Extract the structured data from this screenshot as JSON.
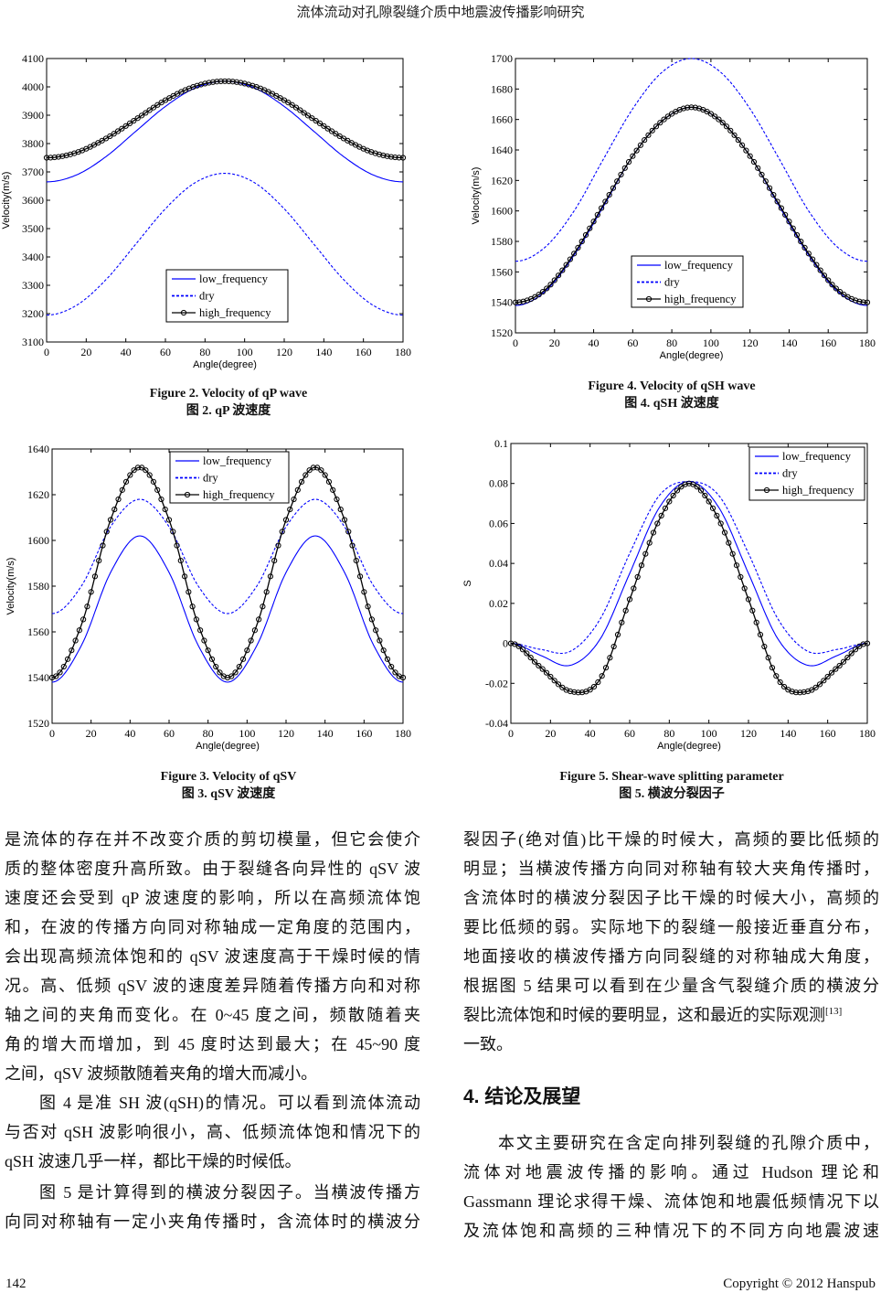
{
  "header": {
    "title": "流体流动对孔隙裂缝介质中地震波传播影响研究"
  },
  "chart_data": [
    {
      "id": "fig2",
      "type": "line",
      "caption_en": "Figure 2. Velocity of qP wave",
      "caption_zh": "图 2. qP 波速度",
      "xlabel": "Angle(degree)",
      "ylabel": "Velocity(m/s)",
      "xlim": [
        0,
        180
      ],
      "ylim": [
        3100,
        4100
      ],
      "xticks": [
        0,
        20,
        40,
        60,
        80,
        100,
        120,
        140,
        160,
        180
      ],
      "yticks": [
        3100,
        3200,
        3300,
        3400,
        3500,
        3600,
        3700,
        3800,
        3900,
        4000,
        4100
      ],
      "legend_position": "lower-center",
      "x": [
        0,
        15,
        30,
        45,
        60,
        75,
        90,
        105,
        120,
        135,
        150,
        165,
        180
      ],
      "series": [
        {
          "name": "low_frequency",
          "style": "solid",
          "color": "#0000ff",
          "values": [
            3665,
            3689,
            3754,
            3843,
            3931,
            3996,
            4020,
            3996,
            3931,
            3843,
            3754,
            3689,
            3665
          ]
        },
        {
          "name": "dry",
          "style": "dashed",
          "color": "#0000ff",
          "values": [
            3195,
            3229,
            3320,
            3445,
            3570,
            3662,
            3695,
            3662,
            3570,
            3445,
            3320,
            3229,
            3195
          ]
        },
        {
          "name": "high_frequency",
          "style": "circle-marker",
          "color": "#000000",
          "values": [
            3750,
            3768,
            3818,
            3885,
            3953,
            4002,
            4020,
            4002,
            3953,
            3885,
            3818,
            3768,
            3750
          ]
        }
      ]
    },
    {
      "id": "fig4",
      "type": "line",
      "caption_en": "Figure 4. Velocity of qSH wave",
      "caption_zh": "图 4. qSH 波速度",
      "xlabel": "Angle(degree)",
      "ylabel": "Velocity(m/s)",
      "xlim": [
        0,
        180
      ],
      "ylim": [
        1520,
        1700
      ],
      "xticks": [
        0,
        20,
        40,
        60,
        80,
        100,
        120,
        140,
        160,
        180
      ],
      "yticks": [
        1520,
        1540,
        1560,
        1580,
        1600,
        1620,
        1640,
        1660,
        1680,
        1700
      ],
      "legend_position": "lower-center",
      "x": [
        0,
        15,
        30,
        45,
        60,
        75,
        90,
        105,
        120,
        135,
        150,
        165,
        180
      ],
      "series": [
        {
          "name": "low_frequency",
          "style": "solid",
          "color": "#0000ff",
          "values": [
            1538,
            1547,
            1571,
            1603,
            1636,
            1659,
            1668,
            1659,
            1636,
            1603,
            1571,
            1547,
            1538
          ]
        },
        {
          "name": "dry",
          "style": "dashed",
          "color": "#0000ff",
          "values": [
            1567,
            1576,
            1600,
            1634,
            1667,
            1691,
            1700,
            1691,
            1667,
            1634,
            1600,
            1576,
            1567
          ]
        },
        {
          "name": "high_frequency",
          "style": "circle-marker",
          "color": "#000000",
          "values": [
            1540,
            1548,
            1572,
            1604,
            1636,
            1659,
            1668,
            1659,
            1636,
            1604,
            1572,
            1548,
            1540
          ]
        }
      ]
    },
    {
      "id": "fig3",
      "type": "line",
      "caption_en": "Figure 3. Velocity of qSV",
      "caption_zh": "图 3. qSV 波速度",
      "xlabel": "Angle(degree)",
      "ylabel": "Velocity(m/s)",
      "xlim": [
        0,
        180
      ],
      "ylim": [
        1520,
        1640
      ],
      "xticks": [
        0,
        20,
        40,
        60,
        80,
        100,
        120,
        140,
        160,
        180
      ],
      "yticks": [
        1520,
        1540,
        1560,
        1580,
        1600,
        1620,
        1640
      ],
      "legend_position": "top-center",
      "x": [
        0,
        15,
        30,
        45,
        60,
        75,
        90,
        105,
        120,
        135,
        150,
        165,
        180
      ],
      "series": [
        {
          "name": "low_frequency",
          "style": "solid",
          "color": "#0000ff",
          "values": [
            1538,
            1554,
            1586,
            1602,
            1586,
            1554,
            1538,
            1554,
            1586,
            1602,
            1586,
            1554,
            1538
          ]
        },
        {
          "name": "dry",
          "style": "dashed",
          "color": "#0000ff",
          "values": [
            1568,
            1580,
            1606,
            1618,
            1606,
            1580,
            1568,
            1580,
            1606,
            1618,
            1606,
            1580,
            1568
          ]
        },
        {
          "name": "high_frequency",
          "style": "circle-marker",
          "color": "#000000",
          "values": [
            1540,
            1563,
            1609,
            1632,
            1609,
            1563,
            1540,
            1563,
            1609,
            1632,
            1609,
            1563,
            1540
          ]
        }
      ]
    },
    {
      "id": "fig5",
      "type": "line",
      "caption_en": "Figure 5. Shear-wave splitting parameter",
      "caption_zh": "图 5.  横波分裂因子",
      "xlabel": "Angle(degree)",
      "ylabel": "S",
      "xlim": [
        0,
        180
      ],
      "ylim": [
        -0.04,
        0.1
      ],
      "xticks": [
        0,
        20,
        40,
        60,
        80,
        100,
        120,
        140,
        160,
        180
      ],
      "yticks": [
        -0.04,
        -0.02,
        0,
        0.02,
        0.04,
        0.06,
        0.08,
        0.1
      ],
      "ytick_labels": [
        "-0.04",
        "-0.02",
        "0",
        "0.02",
        "0.04",
        "0.06",
        "0.08",
        "0.1"
      ],
      "legend_position": "top-right",
      "x": [
        0,
        15,
        30,
        45,
        60,
        75,
        90,
        105,
        120,
        135,
        150,
        165,
        180
      ],
      "series": [
        {
          "name": "low_frequency",
          "style": "solid",
          "color": "#0000ff",
          "values": [
            0,
            -0.006,
            -0.011,
            0.002,
            0.035,
            0.068,
            0.081,
            0.068,
            0.035,
            0.002,
            -0.011,
            -0.006,
            0
          ]
        },
        {
          "name": "dry",
          "style": "dashed",
          "color": "#0000ff",
          "values": [
            0,
            -0.003,
            -0.004,
            0.012,
            0.045,
            0.074,
            0.081,
            0.074,
            0.045,
            0.012,
            -0.004,
            -0.003,
            0
          ]
        },
        {
          "name": "high_frequency",
          "style": "circle-marker",
          "color": "#000000",
          "values": [
            0,
            -0.012,
            -0.024,
            -0.018,
            0.022,
            0.062,
            0.08,
            0.062,
            0.022,
            -0.018,
            -0.024,
            -0.012,
            0
          ]
        }
      ]
    }
  ],
  "body": {
    "left": [
      "是流体的存在并不改变介质的剪切模量，但它会使介",
      "质的整体密度升高所致。由于裂缝各向异性的 qSV 波",
      "速度还会受到 qP 波速度的影响，所以在高频流体饱",
      "和，在波的传播方向同对称轴成一定角度的范围内，",
      "会出现高频流体饱和的 qSV 波速度高于干燥时候的情",
      "况。高、低频 qSV 波的速度差异随着传播方向和对称",
      "轴之间的夹角而变化。在 0~45 度之间，频散随着夹",
      "角的增大而增加，到 45 度时达到最大；在 45~90 度",
      "之间，qSV 波频散随着夹角的增大而减小。",
      "图 4 是准 SH 波(qSH)的情况。可以看到流体流动",
      "与否对 qSH 波影响很小，高、低频流体饱和情况下的",
      "qSH 波速几乎一样，都比干燥的时候低。",
      "图 5 是计算得到的横波分裂因子。当横波传播方",
      "向同对称轴有一定小夹角传播时，含流体时的横波分"
    ],
    "right": [
      "裂因子(绝对值)比干燥的时候大，高频的要比低频的",
      "明显；当横波传播方向同对称轴有较大夹角传播时，",
      "含流体时的横波分裂因子比干燥的时候大小，高频的",
      "要比低频的弱。实际地下的裂缝一般接近垂直分布，",
      "地面接收的横波传播方向同裂缝的对称轴成大角度，",
      "根据图 5 结果可以看到在少量含气裂缝介质的横波分",
      "裂比流体饱和时候的要明显，这和最近的实际观测",
      "一致。"
    ],
    "citation": "[13]",
    "section_heading": "4.  结论及展望",
    "section_lines": [
      "本文主要研究在含定向排列裂缝的孔隙介质中，",
      "流体对地震波传播的影响。通过 Hudson 理论和",
      "Gassmann 理论求得干燥、流体饱和地震低频情况下以",
      "及流体饱和高频的三种情况下的不同方向地震波速"
    ]
  },
  "footer": {
    "page_number": "142",
    "copyright": "Copyright © 2012 Hanspub"
  }
}
